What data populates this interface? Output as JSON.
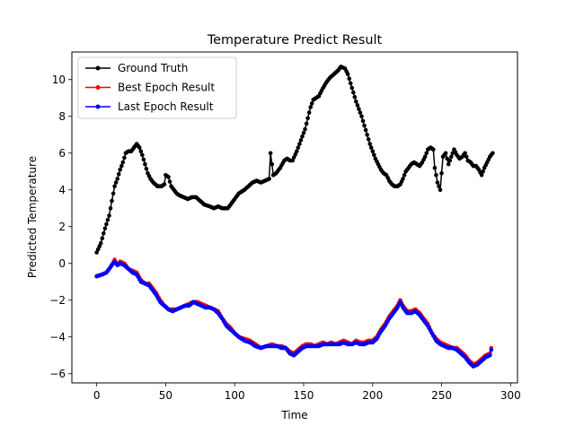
{
  "chart_data": {
    "type": "line",
    "title": "Temperature Predict Result",
    "xlabel": "Time",
    "ylabel": "Predicted Temperature",
    "xlim": [
      -18,
      305
    ],
    "ylim": [
      -6.5,
      11.5
    ],
    "xticks": [
      0,
      50,
      100,
      150,
      200,
      250,
      300
    ],
    "yticks": [
      -6,
      -4,
      -2,
      0,
      2,
      4,
      6,
      8,
      10
    ],
    "grid": false,
    "legend_position": "top-left",
    "marker": "circle",
    "series": [
      {
        "name": "Ground Truth",
        "color": "#000000",
        "keypoints": [
          [
            0,
            0.6
          ],
          [
            3,
            1.1
          ],
          [
            6,
            1.9
          ],
          [
            9,
            2.6
          ],
          [
            11,
            3.4
          ],
          [
            13,
            4.2
          ],
          [
            15,
            4.6
          ],
          [
            17,
            5.1
          ],
          [
            19,
            5.5
          ],
          [
            21,
            6.0
          ],
          [
            23,
            6.1
          ],
          [
            25,
            6.1
          ],
          [
            27,
            6.3
          ],
          [
            29,
            6.5
          ],
          [
            31,
            6.3
          ],
          [
            33,
            5.9
          ],
          [
            35,
            5.4
          ],
          [
            37,
            4.9
          ],
          [
            39,
            4.6
          ],
          [
            41,
            4.4
          ],
          [
            44,
            4.2
          ],
          [
            47,
            4.2
          ],
          [
            49,
            4.3
          ],
          [
            50,
            4.8
          ],
          [
            52,
            4.7
          ],
          [
            54,
            4.2
          ],
          [
            56,
            4.0
          ],
          [
            58,
            3.8
          ],
          [
            60,
            3.7
          ],
          [
            63,
            3.6
          ],
          [
            66,
            3.5
          ],
          [
            69,
            3.6
          ],
          [
            72,
            3.6
          ],
          [
            75,
            3.4
          ],
          [
            78,
            3.2
          ],
          [
            82,
            3.1
          ],
          [
            85,
            3.0
          ],
          [
            88,
            3.1
          ],
          [
            91,
            3.0
          ],
          [
            95,
            3.0
          ],
          [
            97,
            3.2
          ],
          [
            100,
            3.5
          ],
          [
            103,
            3.8
          ],
          [
            107,
            4.0
          ],
          [
            110,
            4.2
          ],
          [
            113,
            4.4
          ],
          [
            116,
            4.5
          ],
          [
            119,
            4.4
          ],
          [
            122,
            4.5
          ],
          [
            125,
            4.6
          ],
          [
            126,
            6.0
          ],
          [
            128,
            4.8
          ],
          [
            130,
            4.9
          ],
          [
            133,
            5.2
          ],
          [
            136,
            5.6
          ],
          [
            138,
            5.7
          ],
          [
            140,
            5.6
          ],
          [
            142,
            5.6
          ],
          [
            145,
            6.1
          ],
          [
            148,
            6.7
          ],
          [
            151,
            7.3
          ],
          [
            153,
            7.9
          ],
          [
            155,
            8.5
          ],
          [
            157,
            8.9
          ],
          [
            159,
            9.0
          ],
          [
            161,
            9.1
          ],
          [
            163,
            9.4
          ],
          [
            166,
            9.8
          ],
          [
            169,
            10.1
          ],
          [
            172,
            10.3
          ],
          [
            175,
            10.5
          ],
          [
            177,
            10.7
          ],
          [
            180,
            10.6
          ],
          [
            182,
            10.3
          ],
          [
            184,
            9.8
          ],
          [
            186,
            9.3
          ],
          [
            188,
            8.8
          ],
          [
            190,
            8.4
          ],
          [
            192,
            8.0
          ],
          [
            194,
            7.5
          ],
          [
            196,
            7.0
          ],
          [
            198,
            6.5
          ],
          [
            200,
            6.1
          ],
          [
            202,
            5.7
          ],
          [
            204,
            5.4
          ],
          [
            206,
            5.1
          ],
          [
            208,
            4.9
          ],
          [
            210,
            4.8
          ],
          [
            212,
            4.5
          ],
          [
            214,
            4.3
          ],
          [
            216,
            4.2
          ],
          [
            218,
            4.2
          ],
          [
            220,
            4.3
          ],
          [
            222,
            4.6
          ],
          [
            224,
            5.0
          ],
          [
            226,
            5.2
          ],
          [
            228,
            5.4
          ],
          [
            230,
            5.5
          ],
          [
            232,
            5.4
          ],
          [
            234,
            5.3
          ],
          [
            236,
            5.5
          ],
          [
            238,
            5.8
          ],
          [
            240,
            6.2
          ],
          [
            242,
            6.3
          ],
          [
            244,
            6.2
          ],
          [
            245,
            5.2
          ],
          [
            247,
            4.4
          ],
          [
            249,
            4.0
          ],
          [
            251,
            5.8
          ],
          [
            253,
            6.0
          ],
          [
            255,
            5.4
          ],
          [
            257,
            5.8
          ],
          [
            259,
            6.2
          ],
          [
            261,
            5.9
          ],
          [
            263,
            5.7
          ],
          [
            265,
            5.8
          ],
          [
            267,
            6.0
          ],
          [
            269,
            5.6
          ],
          [
            271,
            5.5
          ],
          [
            273,
            5.3
          ],
          [
            275,
            5.3
          ],
          [
            277,
            5.1
          ],
          [
            279,
            4.8
          ],
          [
            281,
            5.2
          ],
          [
            283,
            5.5
          ],
          [
            285,
            5.8
          ],
          [
            287,
            6.0
          ]
        ]
      },
      {
        "name": "Best Epoch Result",
        "color": "#ff0000",
        "keypoints": [
          [
            0,
            -0.7
          ],
          [
            4,
            -0.6
          ],
          [
            7,
            -0.5
          ],
          [
            10,
            -0.2
          ],
          [
            13,
            0.2
          ],
          [
            15,
            -0.1
          ],
          [
            17,
            0.1
          ],
          [
            20,
            0.0
          ],
          [
            23,
            -0.3
          ],
          [
            26,
            -0.4
          ],
          [
            29,
            -0.5
          ],
          [
            32,
            -0.9
          ],
          [
            35,
            -1.1
          ],
          [
            38,
            -1.1
          ],
          [
            40,
            -1.3
          ],
          [
            43,
            -1.6
          ],
          [
            46,
            -2.0
          ],
          [
            49,
            -2.3
          ],
          [
            52,
            -2.5
          ],
          [
            55,
            -2.5
          ],
          [
            58,
            -2.5
          ],
          [
            61,
            -2.4
          ],
          [
            64,
            -2.3
          ],
          [
            67,
            -2.2
          ],
          [
            70,
            -2.1
          ],
          [
            73,
            -2.1
          ],
          [
            76,
            -2.2
          ],
          [
            79,
            -2.3
          ],
          [
            82,
            -2.4
          ],
          [
            85,
            -2.5
          ],
          [
            88,
            -2.6
          ],
          [
            91,
            -3.0
          ],
          [
            94,
            -3.3
          ],
          [
            97,
            -3.5
          ],
          [
            100,
            -3.8
          ],
          [
            103,
            -4.0
          ],
          [
            107,
            -4.1
          ],
          [
            111,
            -4.2
          ],
          [
            115,
            -4.4
          ],
          [
            119,
            -4.6
          ],
          [
            123,
            -4.5
          ],
          [
            127,
            -4.4
          ],
          [
            131,
            -4.5
          ],
          [
            134,
            -4.5
          ],
          [
            137,
            -4.6
          ],
          [
            140,
            -4.8
          ],
          [
            143,
            -4.9
          ],
          [
            146,
            -4.7
          ],
          [
            149,
            -4.5
          ],
          [
            152,
            -4.4
          ],
          [
            155,
            -4.4
          ],
          [
            158,
            -4.5
          ],
          [
            161,
            -4.4
          ],
          [
            164,
            -4.3
          ],
          [
            167,
            -4.4
          ],
          [
            170,
            -4.3
          ],
          [
            173,
            -4.4
          ],
          [
            176,
            -4.3
          ],
          [
            179,
            -4.2
          ],
          [
            182,
            -4.3
          ],
          [
            185,
            -4.4
          ],
          [
            188,
            -4.2
          ],
          [
            191,
            -4.3
          ],
          [
            194,
            -4.3
          ],
          [
            197,
            -4.2
          ],
          [
            200,
            -4.2
          ],
          [
            203,
            -4.0
          ],
          [
            206,
            -3.6
          ],
          [
            209,
            -3.3
          ],
          [
            212,
            -2.9
          ],
          [
            215,
            -2.6
          ],
          [
            218,
            -2.3
          ],
          [
            220,
            -2.0
          ],
          [
            222,
            -2.3
          ],
          [
            225,
            -2.6
          ],
          [
            228,
            -2.6
          ],
          [
            231,
            -2.5
          ],
          [
            234,
            -2.7
          ],
          [
            237,
            -3.0
          ],
          [
            240,
            -3.3
          ],
          [
            243,
            -3.8
          ],
          [
            246,
            -4.1
          ],
          [
            249,
            -4.3
          ],
          [
            252,
            -4.4
          ],
          [
            255,
            -4.5
          ],
          [
            258,
            -4.6
          ],
          [
            261,
            -4.6
          ],
          [
            264,
            -4.8
          ],
          [
            267,
            -5.0
          ],
          [
            270,
            -5.3
          ],
          [
            273,
            -5.5
          ],
          [
            276,
            -5.4
          ],
          [
            279,
            -5.2
          ],
          [
            282,
            -5.0
          ],
          [
            285,
            -4.9
          ],
          [
            286,
            -4.6
          ]
        ]
      },
      {
        "name": "Last Epoch Result",
        "color": "#0000ff",
        "keypoints": [
          [
            0,
            -0.7
          ],
          [
            4,
            -0.6
          ],
          [
            7,
            -0.5
          ],
          [
            10,
            -0.2
          ],
          [
            13,
            0.1
          ],
          [
            15,
            -0.1
          ],
          [
            17,
            0.0
          ],
          [
            20,
            -0.1
          ],
          [
            23,
            -0.3
          ],
          [
            26,
            -0.5
          ],
          [
            29,
            -0.6
          ],
          [
            32,
            -1.0
          ],
          [
            35,
            -1.1
          ],
          [
            38,
            -1.2
          ],
          [
            40,
            -1.4
          ],
          [
            43,
            -1.7
          ],
          [
            46,
            -2.1
          ],
          [
            49,
            -2.3
          ],
          [
            52,
            -2.5
          ],
          [
            55,
            -2.6
          ],
          [
            58,
            -2.5
          ],
          [
            61,
            -2.4
          ],
          [
            64,
            -2.3
          ],
          [
            67,
            -2.3
          ],
          [
            70,
            -2.1
          ],
          [
            73,
            -2.2
          ],
          [
            76,
            -2.3
          ],
          [
            79,
            -2.4
          ],
          [
            82,
            -2.4
          ],
          [
            85,
            -2.5
          ],
          [
            88,
            -2.7
          ],
          [
            91,
            -3.0
          ],
          [
            94,
            -3.4
          ],
          [
            97,
            -3.6
          ],
          [
            100,
            -3.8
          ],
          [
            103,
            -4.0
          ],
          [
            107,
            -4.2
          ],
          [
            111,
            -4.3
          ],
          [
            115,
            -4.5
          ],
          [
            119,
            -4.6
          ],
          [
            123,
            -4.5
          ],
          [
            127,
            -4.5
          ],
          [
            131,
            -4.5
          ],
          [
            134,
            -4.6
          ],
          [
            137,
            -4.6
          ],
          [
            140,
            -4.9
          ],
          [
            143,
            -5.0
          ],
          [
            146,
            -4.8
          ],
          [
            149,
            -4.6
          ],
          [
            152,
            -4.5
          ],
          [
            155,
            -4.5
          ],
          [
            158,
            -4.5
          ],
          [
            161,
            -4.5
          ],
          [
            164,
            -4.4
          ],
          [
            167,
            -4.4
          ],
          [
            170,
            -4.4
          ],
          [
            173,
            -4.4
          ],
          [
            176,
            -4.4
          ],
          [
            179,
            -4.3
          ],
          [
            182,
            -4.4
          ],
          [
            185,
            -4.4
          ],
          [
            188,
            -4.3
          ],
          [
            191,
            -4.4
          ],
          [
            194,
            -4.4
          ],
          [
            197,
            -4.3
          ],
          [
            200,
            -4.3
          ],
          [
            203,
            -4.1
          ],
          [
            206,
            -3.7
          ],
          [
            209,
            -3.4
          ],
          [
            212,
            -3.0
          ],
          [
            215,
            -2.7
          ],
          [
            218,
            -2.4
          ],
          [
            220,
            -2.1
          ],
          [
            222,
            -2.4
          ],
          [
            225,
            -2.7
          ],
          [
            228,
            -2.7
          ],
          [
            231,
            -2.6
          ],
          [
            234,
            -2.8
          ],
          [
            237,
            -3.1
          ],
          [
            240,
            -3.4
          ],
          [
            243,
            -3.8
          ],
          [
            246,
            -4.2
          ],
          [
            249,
            -4.4
          ],
          [
            252,
            -4.5
          ],
          [
            255,
            -4.6
          ],
          [
            258,
            -4.6
          ],
          [
            261,
            -4.7
          ],
          [
            264,
            -4.9
          ],
          [
            267,
            -5.1
          ],
          [
            270,
            -5.4
          ],
          [
            273,
            -5.6
          ],
          [
            276,
            -5.5
          ],
          [
            279,
            -5.3
          ],
          [
            282,
            -5.1
          ],
          [
            285,
            -5.0
          ],
          [
            286,
            -4.7
          ]
        ]
      }
    ]
  }
}
